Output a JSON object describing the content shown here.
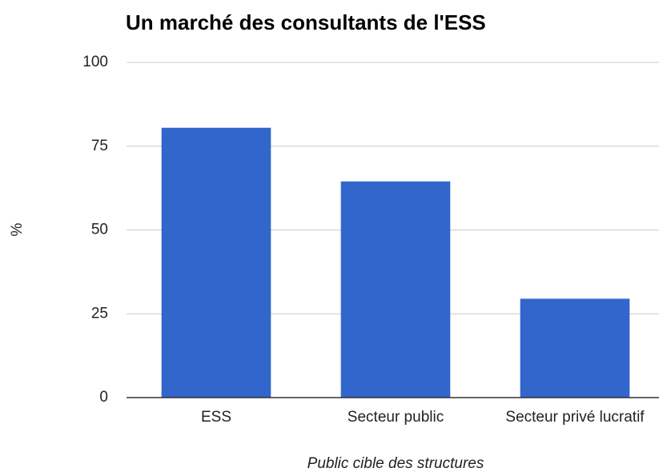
{
  "chart_data": {
    "type": "bar",
    "title": "Un marché des consultants de l'ESS",
    "x_label": "Public cible des structures",
    "y_label": "%",
    "categories": [
      "ESS",
      "Secteur public",
      "Secteur privé lucratif"
    ],
    "values": [
      80.5,
      64.5,
      29.5
    ],
    "color": "#3366cc",
    "ylim": [
      0,
      100
    ],
    "yticks": [
      0,
      25,
      50,
      75,
      100
    ],
    "grid": true
  }
}
